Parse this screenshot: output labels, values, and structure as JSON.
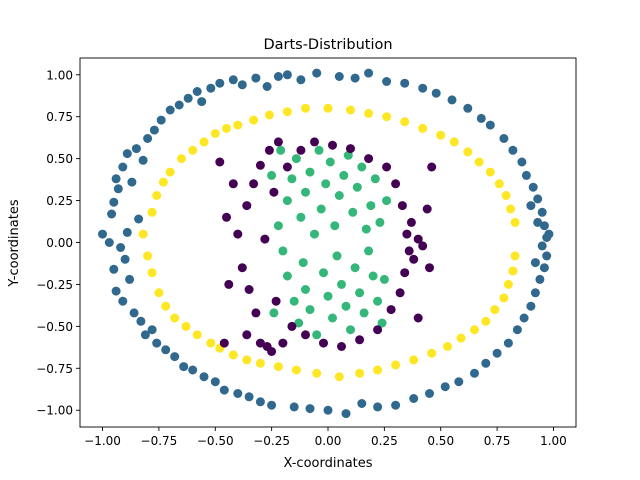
{
  "chart_data": {
    "type": "scatter",
    "title": "Darts-Distribution",
    "xlabel": "X-coordinates",
    "ylabel": "Y-coordinates",
    "xlim": [
      -1.1,
      1.1
    ],
    "ylim": [
      -1.1,
      1.1
    ],
    "xticks": [
      "−1.00",
      "−0.75",
      "−0.50",
      "−0.25",
      "0.00",
      "0.25",
      "0.50",
      "0.75",
      "1.00"
    ],
    "xtick_values": [
      -1.0,
      -0.75,
      -0.5,
      -0.25,
      0.0,
      0.25,
      0.5,
      0.75,
      1.0
    ],
    "yticks": [
      "−1.00",
      "−0.75",
      "−0.50",
      "−0.25",
      "0.00",
      "0.25",
      "0.50",
      "0.75",
      "1.00"
    ],
    "ytick_values": [
      -1.0,
      -0.75,
      -0.5,
      -0.25,
      0.0,
      0.25,
      0.5,
      0.75,
      1.0
    ],
    "grid": false,
    "colors": {
      "purple": "#440154",
      "teal": "#31688e",
      "green": "#35b779",
      "yellow": "#fde725"
    },
    "series": [
      {
        "color": "#31688e",
        "points": [
          [
            -1.0,
            0.05
          ],
          [
            -0.97,
            0.0
          ],
          [
            -0.96,
            0.17
          ],
          [
            -0.95,
            0.24
          ],
          [
            -0.95,
            -0.16
          ],
          [
            -0.94,
            0.38
          ],
          [
            -0.94,
            -0.29
          ],
          [
            -0.93,
            0.32
          ],
          [
            -0.92,
            -0.03
          ],
          [
            -0.91,
            0.45
          ],
          [
            -0.91,
            -0.35
          ],
          [
            -0.9,
            -0.1
          ],
          [
            -0.89,
            0.53
          ],
          [
            -0.89,
            0.06
          ],
          [
            -0.88,
            -0.22
          ],
          [
            -0.87,
            0.36
          ],
          [
            -0.86,
            -0.42
          ],
          [
            -0.85,
            0.56
          ],
          [
            -0.84,
            0.14
          ],
          [
            -0.83,
            -0.47
          ],
          [
            -0.82,
            0.49
          ],
          [
            -0.81,
            -0.55
          ],
          [
            -0.8,
            0.62
          ],
          [
            -0.78,
            -0.52
          ],
          [
            -0.77,
            0.67
          ],
          [
            -0.76,
            -0.6
          ],
          [
            -0.74,
            0.73
          ],
          [
            -0.72,
            -0.64
          ],
          [
            -0.7,
            0.79
          ],
          [
            -0.68,
            -0.68
          ],
          [
            -0.66,
            0.82
          ],
          [
            -0.64,
            -0.74
          ],
          [
            -0.62,
            0.86
          ],
          [
            -0.6,
            -0.76
          ],
          [
            -0.58,
            0.9
          ],
          [
            -0.56,
            0.84
          ],
          [
            -0.55,
            -0.8
          ],
          [
            -0.52,
            0.92
          ],
          [
            -0.5,
            -0.83
          ],
          [
            -0.48,
            0.95
          ],
          [
            -0.46,
            -0.88
          ],
          [
            -0.42,
            0.97
          ],
          [
            -0.4,
            -0.9
          ],
          [
            -0.38,
            0.94
          ],
          [
            -0.35,
            -0.92
          ],
          [
            -0.32,
            0.98
          ],
          [
            -0.3,
            -0.95
          ],
          [
            -0.27,
            0.93
          ],
          [
            -0.25,
            -0.97
          ],
          [
            -0.22,
            0.99
          ],
          [
            -0.18,
            1.0
          ],
          [
            -0.15,
            -0.98
          ],
          [
            -0.12,
            0.97
          ],
          [
            -0.08,
            -0.99
          ],
          [
            -0.05,
            1.01
          ],
          [
            0.0,
            -1.0
          ],
          [
            0.05,
            0.99
          ],
          [
            0.08,
            -1.02
          ],
          [
            0.12,
            0.98
          ],
          [
            0.15,
            -0.96
          ],
          [
            0.18,
            1.01
          ],
          [
            0.22,
            -0.98
          ],
          [
            0.26,
            0.96
          ],
          [
            0.3,
            -0.97
          ],
          [
            0.34,
            0.95
          ],
          [
            0.38,
            -0.93
          ],
          [
            0.42,
            0.92
          ],
          [
            0.45,
            -0.9
          ],
          [
            0.48,
            0.89
          ],
          [
            0.52,
            -0.86
          ],
          [
            0.55,
            0.85
          ],
          [
            0.58,
            -0.83
          ],
          [
            0.62,
            0.8
          ],
          [
            0.65,
            -0.78
          ],
          [
            0.68,
            0.74
          ],
          [
            0.7,
            -0.72
          ],
          [
            0.72,
            0.7
          ],
          [
            0.75,
            -0.66
          ],
          [
            0.78,
            0.62
          ],
          [
            0.8,
            -0.6
          ],
          [
            0.82,
            0.55
          ],
          [
            0.84,
            -0.52
          ],
          [
            0.86,
            0.48
          ],
          [
            0.87,
            -0.45
          ],
          [
            0.88,
            0.4
          ],
          [
            0.9,
            -0.38
          ],
          [
            0.91,
            0.33
          ],
          [
            0.92,
            -0.3
          ],
          [
            0.93,
            0.26
          ],
          [
            0.94,
            -0.22
          ],
          [
            0.95,
            0.18
          ],
          [
            0.96,
            -0.15
          ],
          [
            0.96,
            0.1
          ],
          [
            0.97,
            -0.08
          ],
          [
            0.97,
            0.03
          ],
          [
            0.98,
            0.05
          ],
          [
            0.95,
            -0.02
          ],
          [
            0.93,
            0.12
          ],
          [
            0.92,
            -0.12
          ],
          [
            0.9,
            0.22
          ]
        ]
      },
      {
        "color": "#fde725",
        "points": [
          [
            -0.82,
            0.05
          ],
          [
            -0.8,
            -0.08
          ],
          [
            -0.78,
            0.18
          ],
          [
            -0.78,
            -0.18
          ],
          [
            -0.76,
            0.28
          ],
          [
            -0.75,
            -0.3
          ],
          [
            -0.73,
            0.36
          ],
          [
            -0.72,
            -0.38
          ],
          [
            -0.7,
            0.42
          ],
          [
            -0.68,
            -0.45
          ],
          [
            -0.65,
            0.5
          ],
          [
            -0.63,
            -0.5
          ],
          [
            -0.6,
            0.55
          ],
          [
            -0.58,
            -0.55
          ],
          [
            -0.55,
            0.6
          ],
          [
            -0.52,
            -0.6
          ],
          [
            -0.5,
            0.65
          ],
          [
            -0.48,
            -0.63
          ],
          [
            -0.45,
            0.68
          ],
          [
            -0.42,
            -0.67
          ],
          [
            -0.4,
            0.7
          ],
          [
            -0.36,
            -0.7
          ],
          [
            -0.33,
            0.73
          ],
          [
            -0.3,
            -0.72
          ],
          [
            -0.26,
            0.76
          ],
          [
            -0.22,
            -0.74
          ],
          [
            -0.18,
            0.78
          ],
          [
            -0.14,
            -0.76
          ],
          [
            -0.1,
            0.8
          ],
          [
            -0.05,
            -0.78
          ],
          [
            0.0,
            0.8
          ],
          [
            0.05,
            -0.8
          ],
          [
            0.1,
            0.79
          ],
          [
            0.14,
            -0.78
          ],
          [
            0.18,
            0.77
          ],
          [
            0.22,
            -0.76
          ],
          [
            0.26,
            0.75
          ],
          [
            0.3,
            -0.73
          ],
          [
            0.34,
            0.72
          ],
          [
            0.38,
            -0.7
          ],
          [
            0.42,
            0.68
          ],
          [
            0.46,
            -0.66
          ],
          [
            0.5,
            0.64
          ],
          [
            0.53,
            -0.62
          ],
          [
            0.56,
            0.6
          ],
          [
            0.59,
            -0.57
          ],
          [
            0.62,
            0.54
          ],
          [
            0.65,
            -0.52
          ],
          [
            0.67,
            0.48
          ],
          [
            0.7,
            -0.47
          ],
          [
            0.72,
            0.42
          ],
          [
            0.74,
            -0.4
          ],
          [
            0.76,
            0.35
          ],
          [
            0.78,
            -0.33
          ],
          [
            0.79,
            0.28
          ],
          [
            0.8,
            -0.25
          ],
          [
            0.81,
            0.2
          ],
          [
            0.82,
            -0.17
          ],
          [
            0.83,
            0.12
          ],
          [
            0.83,
            -0.08
          ]
        ]
      },
      {
        "color": "#35b779",
        "points": [
          [
            -0.22,
            0.1
          ],
          [
            -0.2,
            -0.05
          ],
          [
            -0.18,
            0.25
          ],
          [
            -0.18,
            -0.2
          ],
          [
            -0.16,
            0.38
          ],
          [
            -0.15,
            -0.35
          ],
          [
            -0.14,
            0.5
          ],
          [
            -0.13,
            -0.48
          ],
          [
            -0.12,
            0.15
          ],
          [
            -0.11,
            -0.12
          ],
          [
            -0.1,
            0.3
          ],
          [
            -0.1,
            -0.28
          ],
          [
            -0.08,
            0.42
          ],
          [
            -0.08,
            -0.4
          ],
          [
            -0.06,
            0.05
          ],
          [
            -0.05,
            -0.55
          ],
          [
            -0.04,
            0.55
          ],
          [
            -0.03,
            0.2
          ],
          [
            -0.02,
            -0.18
          ],
          [
            -0.01,
            0.35
          ],
          [
            0.0,
            -0.32
          ],
          [
            0.01,
            0.48
          ],
          [
            0.02,
            -0.45
          ],
          [
            0.03,
            0.1
          ],
          [
            0.04,
            -0.08
          ],
          [
            0.05,
            0.28
          ],
          [
            0.06,
            -0.25
          ],
          [
            0.07,
            0.4
          ],
          [
            0.08,
            -0.38
          ],
          [
            0.09,
            0.52
          ],
          [
            0.1,
            -0.52
          ],
          [
            0.11,
            0.18
          ],
          [
            0.12,
            -0.15
          ],
          [
            0.13,
            0.33
          ],
          [
            0.14,
            -0.3
          ],
          [
            0.15,
            0.45
          ],
          [
            0.16,
            -0.42
          ],
          [
            0.17,
            0.08
          ],
          [
            0.18,
            -0.05
          ],
          [
            0.19,
            0.22
          ],
          [
            0.2,
            -0.2
          ],
          [
            0.21,
            0.38
          ],
          [
            0.22,
            -0.35
          ],
          [
            0.23,
            0.12
          ],
          [
            0.24,
            -0.48
          ],
          [
            -0.25,
            0.4
          ],
          [
            -0.24,
            -0.42
          ],
          [
            -0.21,
            0.55
          ],
          [
            0.26,
            0.25
          ],
          [
            0.25,
            -0.22
          ]
        ]
      },
      {
        "color": "#440154",
        "points": [
          [
            -0.4,
            0.05
          ],
          [
            -0.38,
            -0.15
          ],
          [
            -0.36,
            0.22
          ],
          [
            -0.35,
            -0.28
          ],
          [
            -0.33,
            0.35
          ],
          [
            -0.32,
            -0.42
          ],
          [
            -0.3,
            0.46
          ],
          [
            -0.3,
            -0.6
          ],
          [
            -0.28,
            0.02
          ],
          [
            -0.27,
            -0.62
          ],
          [
            -0.26,
            0.55
          ],
          [
            -0.25,
            -0.65
          ],
          [
            -0.24,
            0.3
          ],
          [
            -0.23,
            -0.35
          ],
          [
            -0.22,
            0.6
          ],
          [
            -0.2,
            -0.6
          ],
          [
            -0.18,
            0.45
          ],
          [
            -0.16,
            -0.5
          ],
          [
            -0.12,
            0.55
          ],
          [
            -0.1,
            -0.55
          ],
          [
            -0.06,
            0.6
          ],
          [
            -0.02,
            -0.6
          ],
          [
            0.02,
            0.58
          ],
          [
            0.06,
            -0.62
          ],
          [
            0.1,
            0.56
          ],
          [
            0.14,
            -0.58
          ],
          [
            0.18,
            0.5
          ],
          [
            0.22,
            -0.52
          ],
          [
            0.26,
            0.45
          ],
          [
            0.28,
            -0.4
          ],
          [
            0.3,
            0.35
          ],
          [
            0.32,
            -0.3
          ],
          [
            0.33,
            0.22
          ],
          [
            0.34,
            -0.18
          ],
          [
            0.35,
            0.05
          ],
          [
            0.36,
            -0.05
          ],
          [
            0.37,
            0.12
          ],
          [
            0.38,
            -0.1
          ],
          [
            0.4,
            0.02
          ],
          [
            0.42,
            -0.02
          ],
          [
            -0.45,
            0.15
          ],
          [
            -0.44,
            -0.25
          ],
          [
            -0.42,
            0.35
          ],
          [
            0.44,
            0.2
          ],
          [
            0.45,
            -0.15
          ],
          [
            -0.46,
            -0.6
          ],
          [
            -0.48,
            0.48
          ],
          [
            0.46,
            0.45
          ],
          [
            0.4,
            -0.45
          ],
          [
            -0.36,
            -0.55
          ]
        ]
      }
    ]
  }
}
